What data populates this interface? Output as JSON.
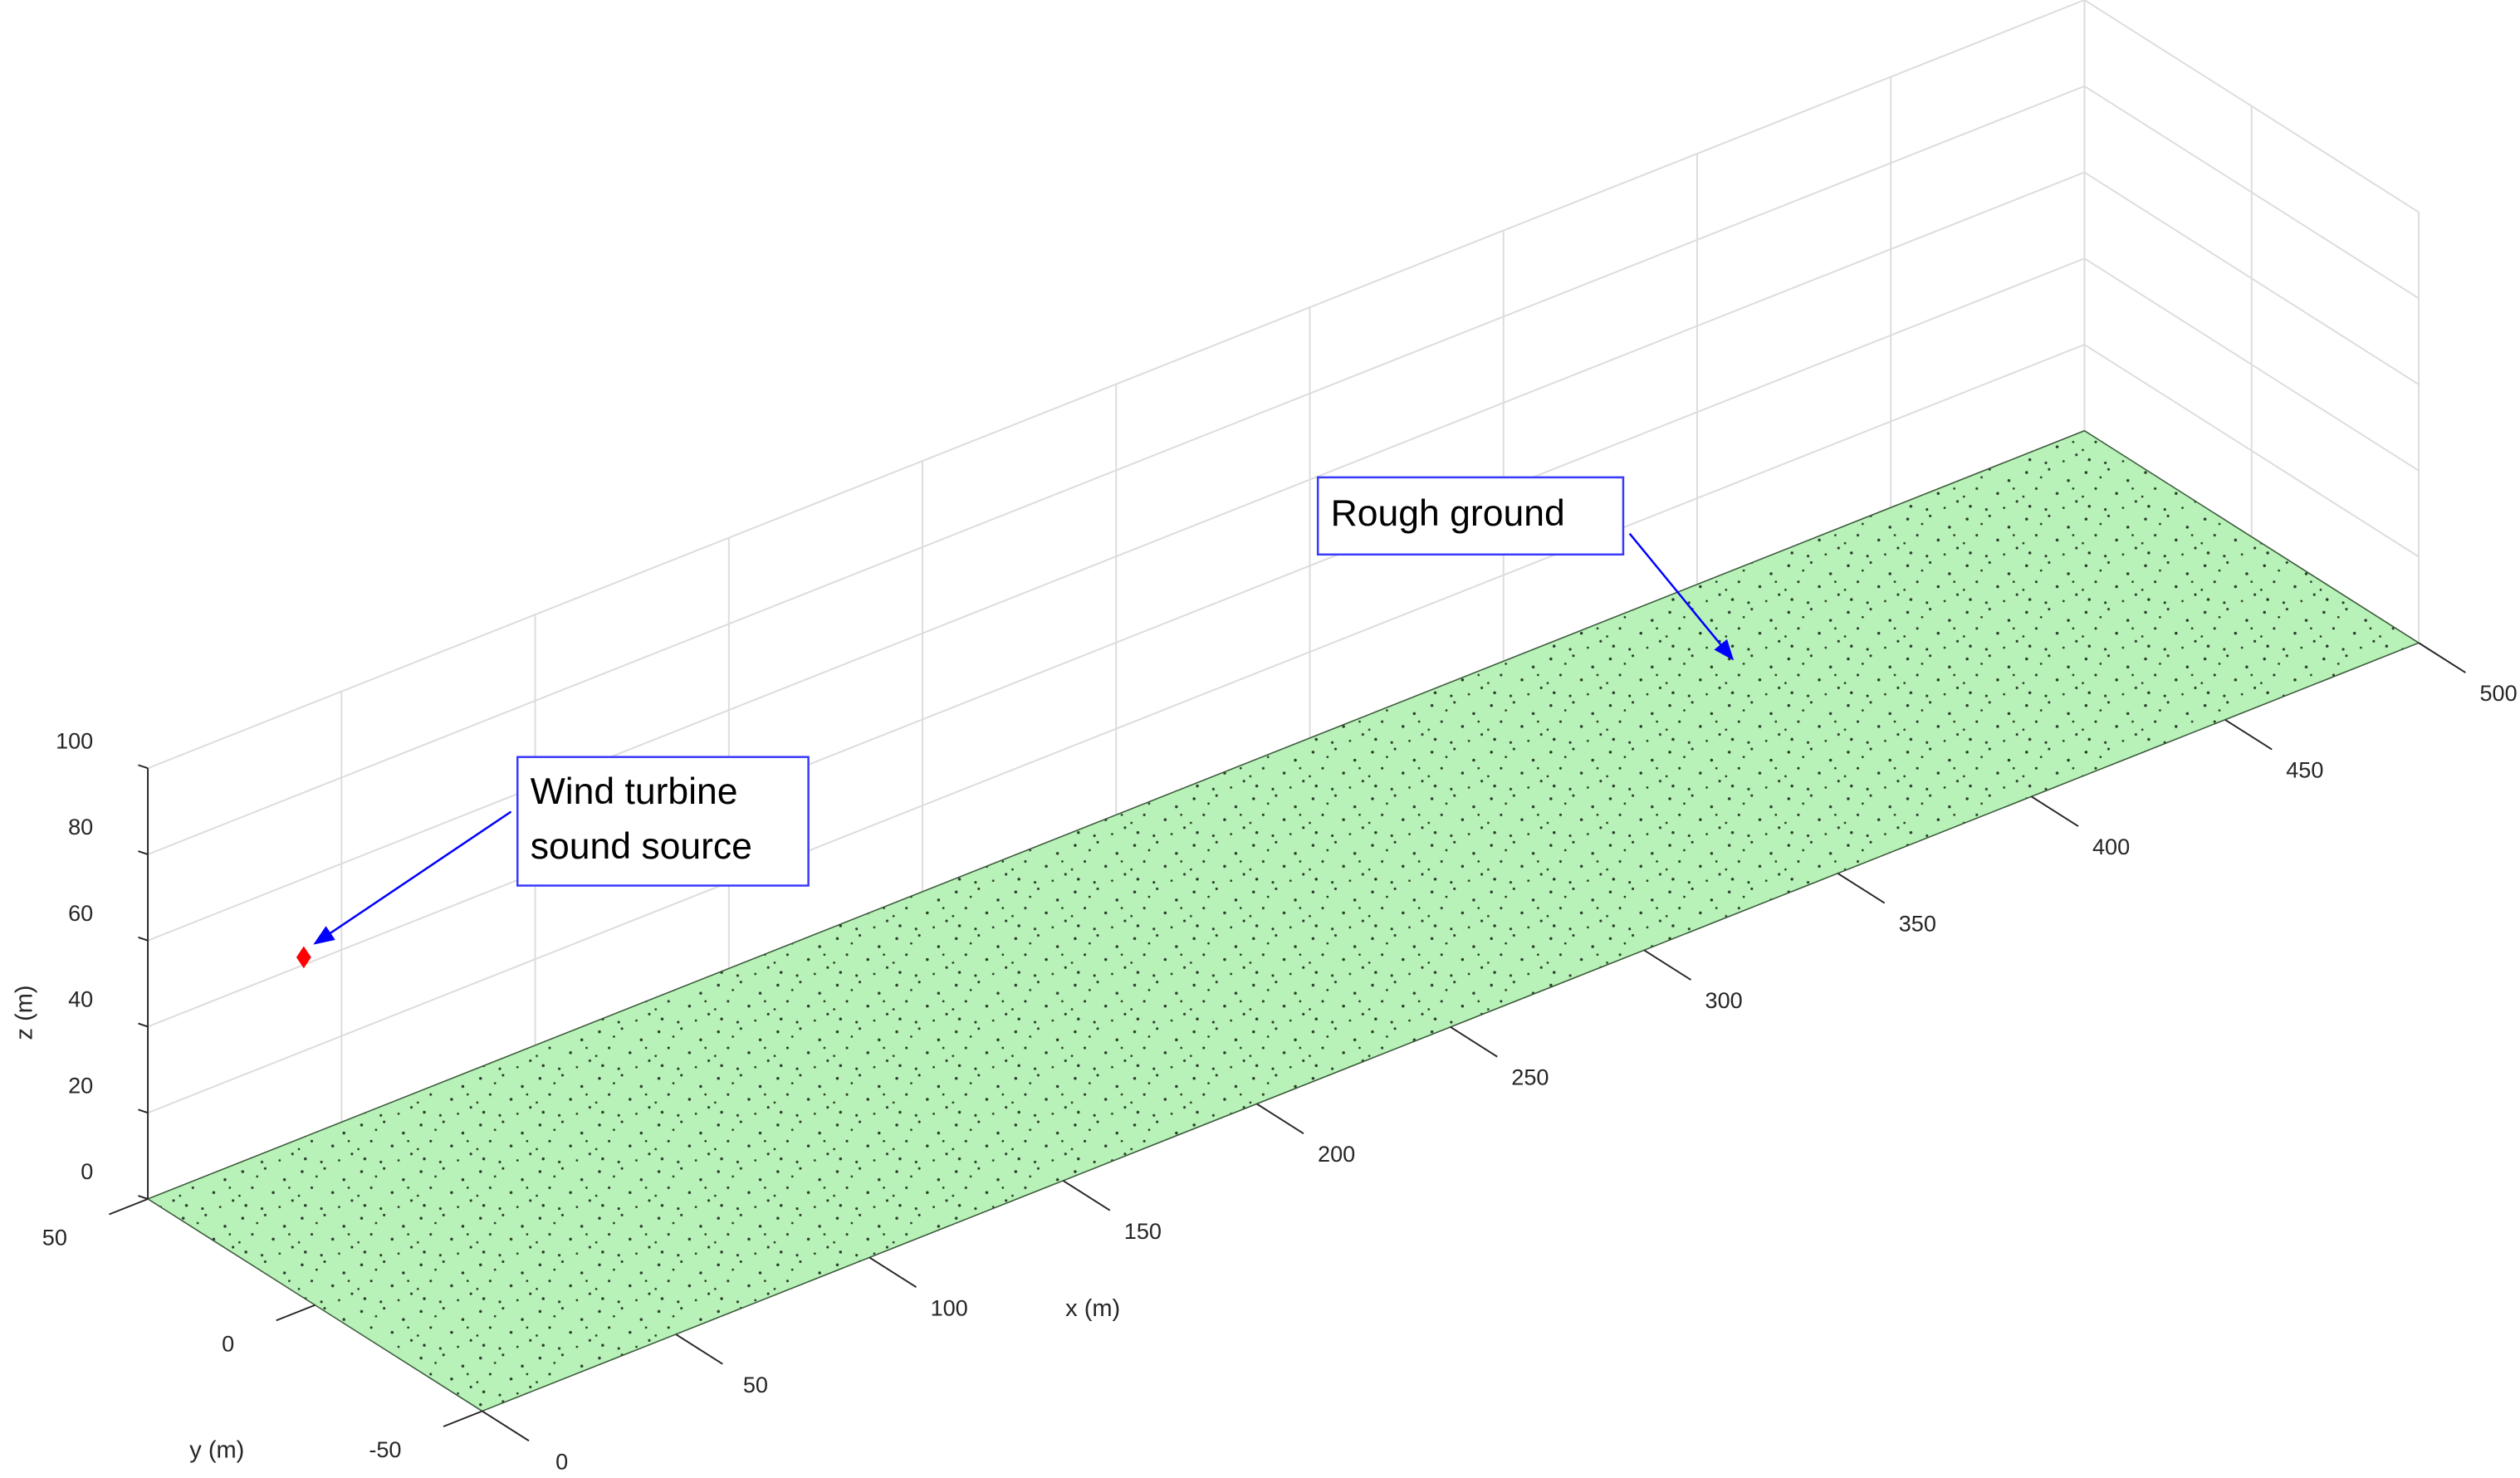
{
  "chart_data": {
    "type": "scatter3d",
    "xlabel": "x (m)",
    "ylabel": "y (m)",
    "zlabel": "z (m)",
    "xlim": [
      0,
      500
    ],
    "ylim": [
      -50,
      50
    ],
    "zlim": [
      0,
      100
    ],
    "xticks": [
      0,
      50,
      100,
      150,
      200,
      250,
      300,
      350,
      400,
      450,
      500
    ],
    "yticks": [
      -50,
      0,
      50
    ],
    "zticks": [
      0,
      20,
      40,
      60,
      80,
      100
    ],
    "grid": true,
    "ground_color": "#b8f2b8",
    "points": [
      {
        "x": 0,
        "y": 0,
        "z": 80,
        "color": "#ff0000"
      }
    ],
    "annotations": [
      {
        "lines": [
          "Wind turbine",
          "sound source"
        ]
      },
      {
        "lines": [
          "Rough ground"
        ]
      }
    ]
  }
}
